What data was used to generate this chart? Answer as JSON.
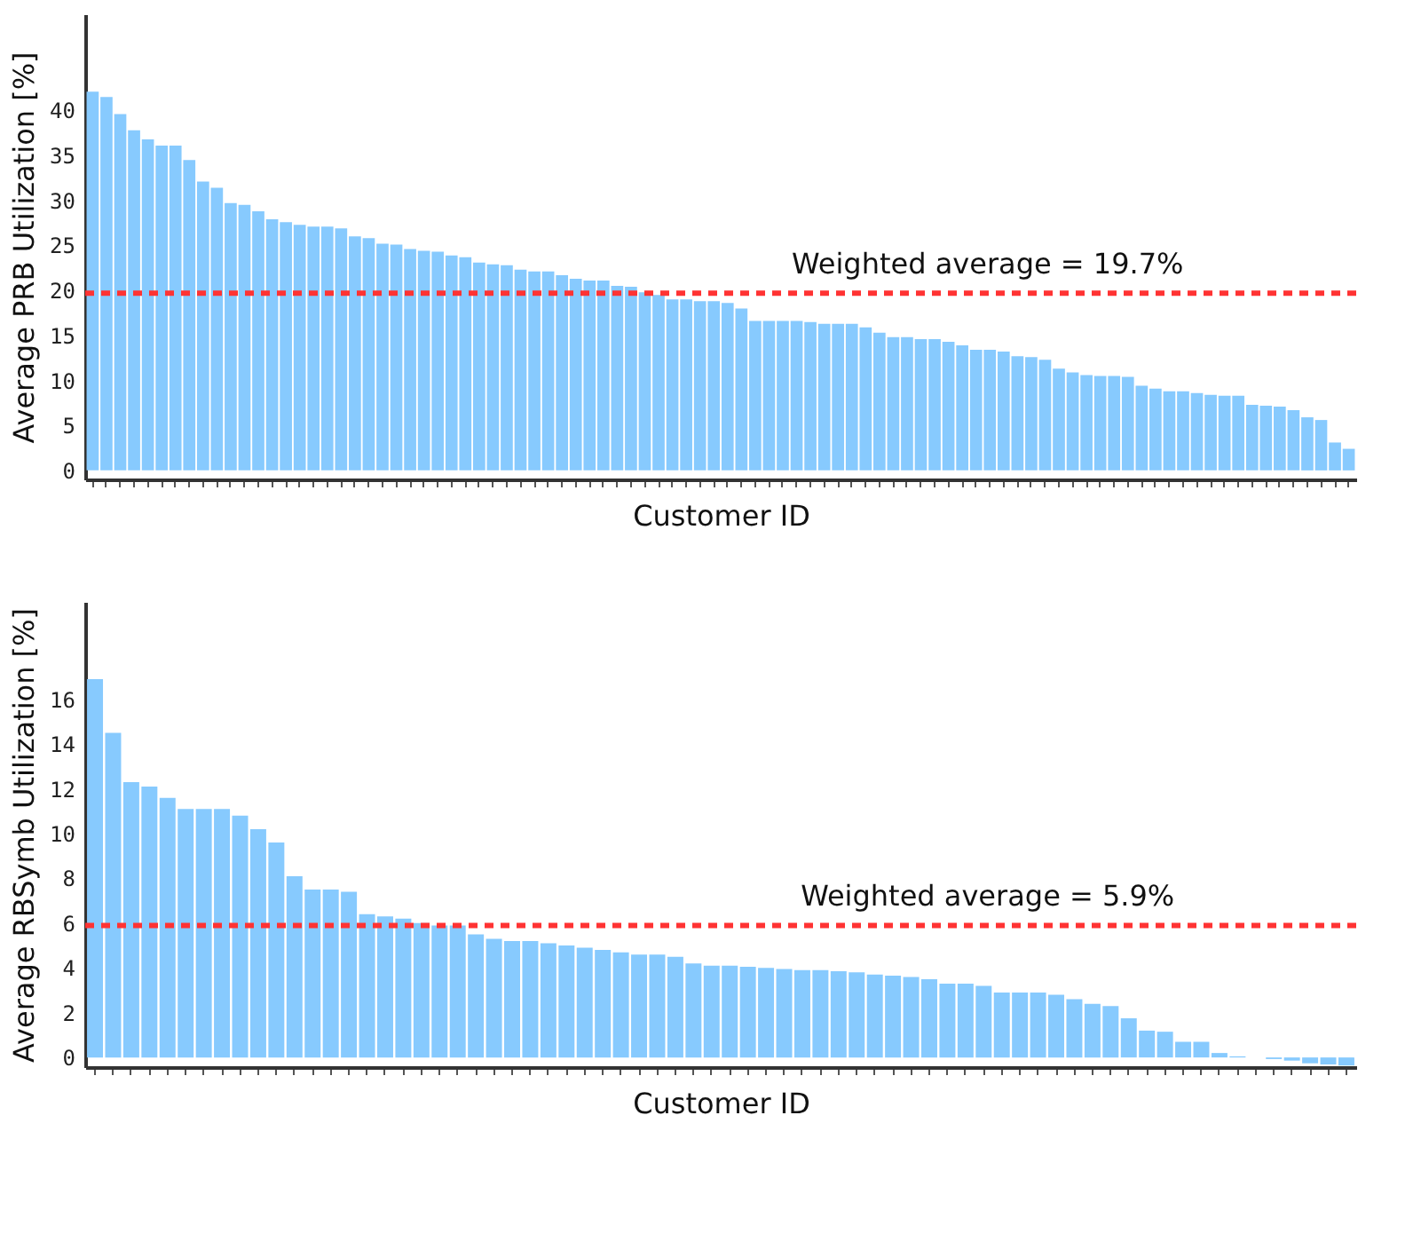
{
  "chart_data": [
    {
      "type": "bar",
      "xlabel": "Customer ID",
      "ylabel": "Average PRB Utilization [%]",
      "categories": [
        null,
        null,
        null,
        null,
        null,
        null,
        null,
        null,
        null,
        null,
        null,
        null,
        null,
        null,
        null,
        null,
        null,
        null,
        null,
        null,
        null,
        null,
        null,
        null,
        null,
        null,
        null,
        null,
        null,
        null,
        null,
        null,
        null,
        null,
        null,
        null,
        null,
        null,
        null,
        null,
        null,
        null,
        null,
        null,
        null,
        null,
        null,
        null,
        null,
        null,
        null,
        null,
        null,
        null,
        null,
        null,
        null,
        null,
        null,
        null,
        null,
        null,
        null,
        null,
        null,
        null,
        null,
        null,
        null,
        null,
        null,
        null,
        null,
        null,
        null,
        null,
        null,
        null,
        null,
        null,
        null,
        null,
        null,
        null,
        null,
        null,
        null,
        null,
        null,
        null,
        null,
        null
      ],
      "series": [
        {
          "color": "#87cafe",
          "values": [
            42.1,
            41.5,
            39.6,
            37.8,
            36.8,
            36.1,
            36.1,
            34.5,
            32.1,
            31.4,
            29.7,
            29.5,
            28.8,
            27.9,
            27.6,
            27.3,
            27.1,
            27.1,
            26.9,
            26.0,
            25.8,
            25.2,
            25.1,
            24.6,
            24.4,
            24.3,
            23.9,
            23.7,
            23.1,
            22.9,
            22.8,
            22.3,
            22.1,
            22.1,
            21.7,
            21.3,
            21.1,
            21.1,
            20.5,
            20.4,
            19.8,
            19.5,
            19.0,
            19.0,
            18.8,
            18.8,
            18.6,
            18.0,
            16.6,
            16.6,
            16.6,
            16.6,
            16.5,
            16.3,
            16.3,
            16.3,
            15.9,
            15.3,
            14.8,
            14.8,
            14.6,
            14.6,
            14.3,
            13.9,
            13.4,
            13.4,
            13.2,
            12.7,
            12.6,
            12.3,
            11.3,
            10.9,
            10.6,
            10.5,
            10.5,
            10.4,
            9.4,
            9.1,
            8.8,
            8.8,
            8.6,
            8.4,
            8.3,
            8.3,
            7.3,
            7.2,
            7.1,
            6.7,
            5.9,
            5.6,
            3.1,
            2.4
          ]
        }
      ],
      "ylim": [
        -1,
        50.7
      ],
      "yticks": [
        0,
        5,
        10,
        15,
        20,
        25,
        30,
        35,
        40
      ],
      "grid": false,
      "tick_labels": "y",
      "ref_lines": [
        {
          "axis": "y",
          "value": 19.7,
          "label": "Weighted average = 19.7%",
          "color": "#ff3333",
          "line_style": "dashed"
        }
      ]
    },
    {
      "type": "bar",
      "xlabel": "Customer ID",
      "ylabel": "Average RBSymb Utilization [%]",
      "categories": [
        null,
        null,
        null,
        null,
        null,
        null,
        null,
        null,
        null,
        null,
        null,
        null,
        null,
        null,
        null,
        null,
        null,
        null,
        null,
        null,
        null,
        null,
        null,
        null,
        null,
        null,
        null,
        null,
        null,
        null,
        null,
        null,
        null,
        null,
        null,
        null,
        null,
        null,
        null,
        null,
        null,
        null,
        null,
        null,
        null,
        null,
        null,
        null,
        null,
        null,
        null,
        null,
        null,
        null,
        null,
        null,
        null,
        null,
        null,
        null,
        null,
        null,
        null,
        null,
        null,
        null,
        null,
        null,
        null,
        null
      ],
      "series": [
        {
          "color": "#87cafe",
          "values": [
            16.9,
            14.5,
            12.3,
            12.1,
            11.6,
            11.1,
            11.1,
            11.1,
            10.8,
            10.2,
            9.6,
            8.1,
            7.5,
            7.5,
            7.4,
            6.4,
            6.3,
            6.2,
            6.0,
            5.9,
            5.9,
            5.5,
            5.3,
            5.2,
            5.2,
            5.1,
            5.0,
            4.9,
            4.8,
            4.7,
            4.6,
            4.6,
            4.5,
            4.2,
            4.1,
            4.1,
            4.05,
            4.0,
            3.95,
            3.9,
            3.9,
            3.85,
            3.8,
            3.7,
            3.65,
            3.6,
            3.5,
            3.3,
            3.3,
            3.2,
            2.9,
            2.9,
            2.9,
            2.8,
            2.6,
            2.4,
            2.3,
            1.75,
            1.2,
            1.15,
            0.7,
            0.7,
            0.2,
            0.05,
            0,
            -0.07,
            -0.14,
            -0.26,
            -0.31,
            -0.36
          ]
        }
      ],
      "ylim": [
        -0.43,
        20.35
      ],
      "yticks": [
        0,
        2,
        4,
        6,
        8,
        10,
        12,
        14,
        16
      ],
      "grid": false,
      "tick_labels": "y",
      "ref_lines": [
        {
          "axis": "y",
          "value": 5.9,
          "label": "Weighted average = 5.9%",
          "color": "#ff3333",
          "line_style": "dashed"
        }
      ]
    }
  ]
}
